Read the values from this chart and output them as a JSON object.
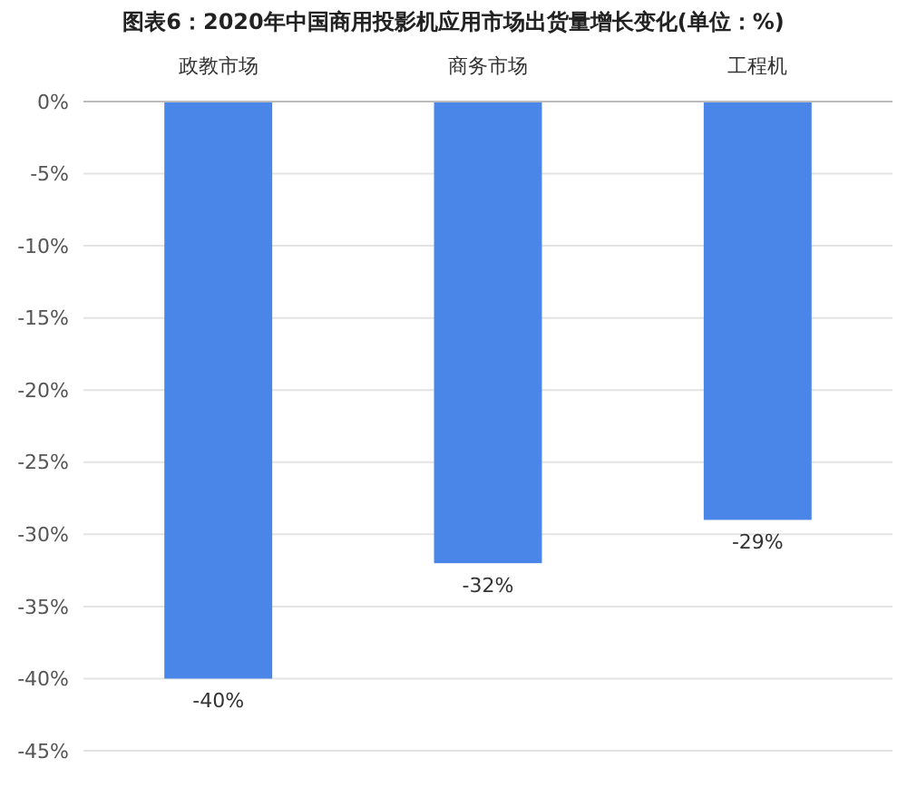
{
  "chart_data": {
    "type": "bar",
    "title": "图表6：2020年中国商用投影机应用市场出货量增长变化(单位：%)",
    "categories": [
      "政教市场",
      "商务市场",
      "工程机"
    ],
    "values": [
      -40,
      -32,
      -29
    ],
    "color": "#4a86e8",
    "value_labels": [
      "-40%",
      "-32%",
      "-29%"
    ],
    "ylim": [
      -45,
      0
    ],
    "yticks": [
      {
        "value": 0,
        "label": "0%"
      },
      {
        "value": -5,
        "label": "-5%"
      },
      {
        "value": -10,
        "label": "-10%"
      },
      {
        "value": -15,
        "label": "-15%"
      },
      {
        "value": -20,
        "label": "-20%"
      },
      {
        "value": -25,
        "label": "-25%"
      },
      {
        "value": -30,
        "label": "-30%"
      },
      {
        "value": -35,
        "label": "-35%"
      },
      {
        "value": -40,
        "label": "-40%"
      },
      {
        "value": -45,
        "label": "-45%"
      }
    ],
    "grid": "y"
  }
}
